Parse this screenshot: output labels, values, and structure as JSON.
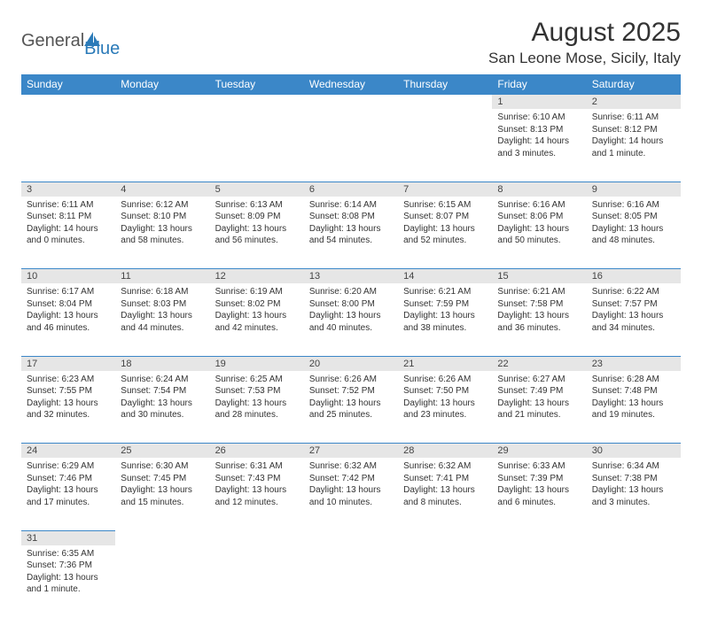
{
  "logo": {
    "part1": "General",
    "part2": "Blue"
  },
  "title": "August 2025",
  "location": "San Leone Mose, Sicily, Italy",
  "colors": {
    "header_bg": "#3b87c8",
    "header_text": "#ffffff",
    "daynum_bg": "#e6e6e6",
    "border": "#3b87c8",
    "text": "#333333",
    "logo_blue": "#2a7ab8"
  },
  "fonts": {
    "title_size": 30,
    "location_size": 17,
    "header_size": 12,
    "daynum_size": 11,
    "cell_size": 10
  },
  "day_headers": [
    "Sunday",
    "Monday",
    "Tuesday",
    "Wednesday",
    "Thursday",
    "Friday",
    "Saturday"
  ],
  "weeks": [
    [
      null,
      null,
      null,
      null,
      null,
      {
        "n": "1",
        "sunrise": "6:10 AM",
        "sunset": "8:13 PM",
        "daylight": "14 hours and 3 minutes."
      },
      {
        "n": "2",
        "sunrise": "6:11 AM",
        "sunset": "8:12 PM",
        "daylight": "14 hours and 1 minute."
      }
    ],
    [
      {
        "n": "3",
        "sunrise": "6:11 AM",
        "sunset": "8:11 PM",
        "daylight": "14 hours and 0 minutes."
      },
      {
        "n": "4",
        "sunrise": "6:12 AM",
        "sunset": "8:10 PM",
        "daylight": "13 hours and 58 minutes."
      },
      {
        "n": "5",
        "sunrise": "6:13 AM",
        "sunset": "8:09 PM",
        "daylight": "13 hours and 56 minutes."
      },
      {
        "n": "6",
        "sunrise": "6:14 AM",
        "sunset": "8:08 PM",
        "daylight": "13 hours and 54 minutes."
      },
      {
        "n": "7",
        "sunrise": "6:15 AM",
        "sunset": "8:07 PM",
        "daylight": "13 hours and 52 minutes."
      },
      {
        "n": "8",
        "sunrise": "6:16 AM",
        "sunset": "8:06 PM",
        "daylight": "13 hours and 50 minutes."
      },
      {
        "n": "9",
        "sunrise": "6:16 AM",
        "sunset": "8:05 PM",
        "daylight": "13 hours and 48 minutes."
      }
    ],
    [
      {
        "n": "10",
        "sunrise": "6:17 AM",
        "sunset": "8:04 PM",
        "daylight": "13 hours and 46 minutes."
      },
      {
        "n": "11",
        "sunrise": "6:18 AM",
        "sunset": "8:03 PM",
        "daylight": "13 hours and 44 minutes."
      },
      {
        "n": "12",
        "sunrise": "6:19 AM",
        "sunset": "8:02 PM",
        "daylight": "13 hours and 42 minutes."
      },
      {
        "n": "13",
        "sunrise": "6:20 AM",
        "sunset": "8:00 PM",
        "daylight": "13 hours and 40 minutes."
      },
      {
        "n": "14",
        "sunrise": "6:21 AM",
        "sunset": "7:59 PM",
        "daylight": "13 hours and 38 minutes."
      },
      {
        "n": "15",
        "sunrise": "6:21 AM",
        "sunset": "7:58 PM",
        "daylight": "13 hours and 36 minutes."
      },
      {
        "n": "16",
        "sunrise": "6:22 AM",
        "sunset": "7:57 PM",
        "daylight": "13 hours and 34 minutes."
      }
    ],
    [
      {
        "n": "17",
        "sunrise": "6:23 AM",
        "sunset": "7:55 PM",
        "daylight": "13 hours and 32 minutes."
      },
      {
        "n": "18",
        "sunrise": "6:24 AM",
        "sunset": "7:54 PM",
        "daylight": "13 hours and 30 minutes."
      },
      {
        "n": "19",
        "sunrise": "6:25 AM",
        "sunset": "7:53 PM",
        "daylight": "13 hours and 28 minutes."
      },
      {
        "n": "20",
        "sunrise": "6:26 AM",
        "sunset": "7:52 PM",
        "daylight": "13 hours and 25 minutes."
      },
      {
        "n": "21",
        "sunrise": "6:26 AM",
        "sunset": "7:50 PM",
        "daylight": "13 hours and 23 minutes."
      },
      {
        "n": "22",
        "sunrise": "6:27 AM",
        "sunset": "7:49 PM",
        "daylight": "13 hours and 21 minutes."
      },
      {
        "n": "23",
        "sunrise": "6:28 AM",
        "sunset": "7:48 PM",
        "daylight": "13 hours and 19 minutes."
      }
    ],
    [
      {
        "n": "24",
        "sunrise": "6:29 AM",
        "sunset": "7:46 PM",
        "daylight": "13 hours and 17 minutes."
      },
      {
        "n": "25",
        "sunrise": "6:30 AM",
        "sunset": "7:45 PM",
        "daylight": "13 hours and 15 minutes."
      },
      {
        "n": "26",
        "sunrise": "6:31 AM",
        "sunset": "7:43 PM",
        "daylight": "13 hours and 12 minutes."
      },
      {
        "n": "27",
        "sunrise": "6:32 AM",
        "sunset": "7:42 PM",
        "daylight": "13 hours and 10 minutes."
      },
      {
        "n": "28",
        "sunrise": "6:32 AM",
        "sunset": "7:41 PM",
        "daylight": "13 hours and 8 minutes."
      },
      {
        "n": "29",
        "sunrise": "6:33 AM",
        "sunset": "7:39 PM",
        "daylight": "13 hours and 6 minutes."
      },
      {
        "n": "30",
        "sunrise": "6:34 AM",
        "sunset": "7:38 PM",
        "daylight": "13 hours and 3 minutes."
      }
    ],
    [
      {
        "n": "31",
        "sunrise": "6:35 AM",
        "sunset": "7:36 PM",
        "daylight": "13 hours and 1 minute."
      },
      null,
      null,
      null,
      null,
      null,
      null
    ]
  ]
}
